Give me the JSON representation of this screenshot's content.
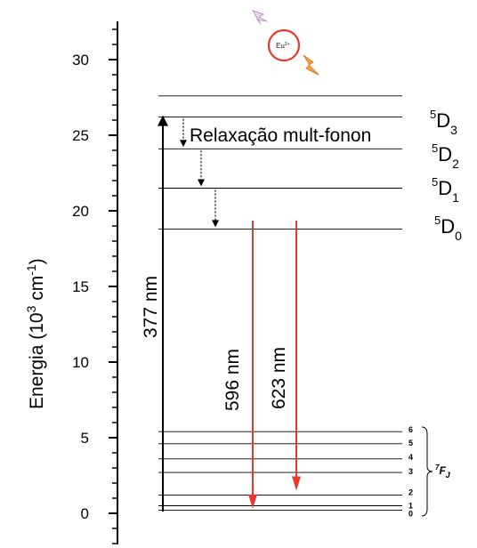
{
  "axis": {
    "ylabel_text": "Energia (10",
    "ylabel_exp1": "3",
    "ylabel_unit": " cm",
    "ylabel_exp2": "-1",
    "ylabel_close": ")",
    "ticks": [
      {
        "value": 0,
        "label": "0"
      },
      {
        "value": 5,
        "label": "5"
      },
      {
        "value": 10,
        "label": "10"
      },
      {
        "value": 15,
        "label": "15"
      },
      {
        "value": 20,
        "label": "20"
      },
      {
        "value": 25,
        "label": "25"
      },
      {
        "value": 30,
        "label": "30"
      }
    ],
    "range": [
      0,
      30
    ]
  },
  "excitation": {
    "label": "377 nm",
    "from": 0,
    "to": 26.2
  },
  "relaxation": {
    "label": "Relaxação mult-fonon"
  },
  "emissions": [
    {
      "label": "596 nm",
      "from": 19.0,
      "to": 0.3,
      "color": "#e8382a"
    },
    {
      "label": "623 nm",
      "from": 19.0,
      "to": 1.5,
      "color": "#e8382a"
    }
  ],
  "upper_levels": [
    {
      "name": "5D3",
      "pre": "5",
      "main": "D",
      "sub": "3",
      "energy": 26.2
    },
    {
      "name": "5D2",
      "pre": "5",
      "main": "D",
      "sub": "2",
      "energy": 24.1
    },
    {
      "name": "5D1",
      "pre": "5",
      "main": "D",
      "sub": "1",
      "energy": 21.5
    },
    {
      "name": "5D0",
      "pre": "5",
      "main": "D",
      "sub": "0",
      "energy": 18.8
    }
  ],
  "top_line_energy": 27.6,
  "ground_levels": [
    {
      "j": "0",
      "energy": 0.2
    },
    {
      "j": "1",
      "energy": 0.5
    },
    {
      "j": "2",
      "energy": 1.2
    },
    {
      "j": "3",
      "energy": 2.7
    },
    {
      "j": "4",
      "energy": 3.6
    },
    {
      "j": "5",
      "energy": 4.6
    },
    {
      "j": "6",
      "energy": 5.4
    }
  ],
  "ground_label": {
    "pre": "7",
    "main": "F",
    "sub": "J"
  },
  "ion": {
    "label": "Eu",
    "sup": "3+",
    "ring_color": "#e8382a"
  }
}
